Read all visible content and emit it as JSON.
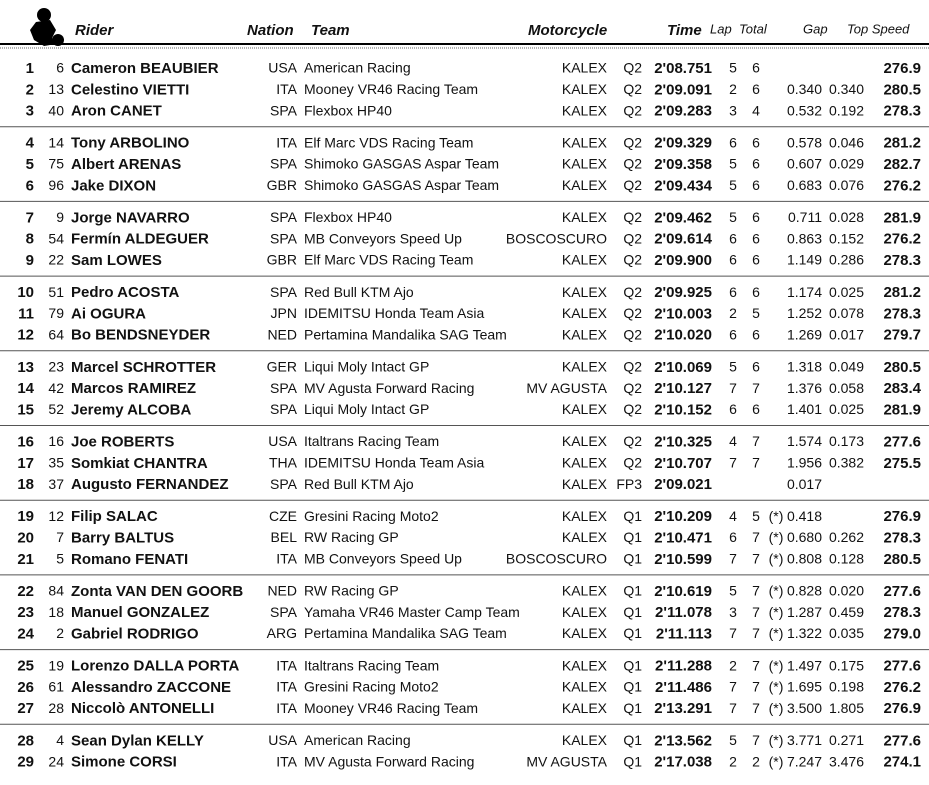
{
  "header": {
    "rider": "Rider",
    "nation": "Nation",
    "team": "Team",
    "motorcycle": "Motorcycle",
    "time": "Time",
    "lap": "Lap",
    "total": "Total",
    "gap": "Gap",
    "top_speed": "Top Speed"
  },
  "rows": [
    {
      "pos": "1",
      "num": "6",
      "rider": "Cameron BEAUBIER",
      "nation": "USA",
      "team": "American Racing",
      "moto": "KALEX",
      "session": "Q2",
      "time": "2'08.751",
      "lap": "5",
      "total": "6",
      "speed": "276.9"
    },
    {
      "pos": "2",
      "num": "13",
      "rider": "Celestino VIETTI",
      "nation": "ITA",
      "team": "Mooney VR46 Racing Team",
      "moto": "KALEX",
      "session": "Q2",
      "time": "2'09.091",
      "lap": "2",
      "total": "6",
      "gap": "0.340",
      "diff": "0.340",
      "speed": "280.5"
    },
    {
      "pos": "3",
      "num": "40",
      "rider": "Aron CANET",
      "nation": "SPA",
      "team": "Flexbox HP40",
      "moto": "KALEX",
      "session": "Q2",
      "time": "2'09.283",
      "lap": "3",
      "total": "4",
      "gap": "0.532",
      "diff": "0.192",
      "speed": "278.3"
    },
    {
      "pos": "4",
      "num": "14",
      "rider": "Tony ARBOLINO",
      "nation": "ITA",
      "team": "Elf Marc VDS Racing Team",
      "moto": "KALEX",
      "session": "Q2",
      "time": "2'09.329",
      "lap": "6",
      "total": "6",
      "gap": "0.578",
      "diff": "0.046",
      "speed": "281.2"
    },
    {
      "pos": "5",
      "num": "75",
      "rider": "Albert ARENAS",
      "nation": "SPA",
      "team": "Shimoko GASGAS Aspar Team",
      "moto": "KALEX",
      "session": "Q2",
      "time": "2'09.358",
      "lap": "5",
      "total": "6",
      "gap": "0.607",
      "diff": "0.029",
      "speed": "282.7"
    },
    {
      "pos": "6",
      "num": "96",
      "rider": "Jake DIXON",
      "nation": "GBR",
      "team": "Shimoko GASGAS Aspar Team",
      "moto": "KALEX",
      "session": "Q2",
      "time": "2'09.434",
      "lap": "5",
      "total": "6",
      "gap": "0.683",
      "diff": "0.076",
      "speed": "276.2"
    },
    {
      "pos": "7",
      "num": "9",
      "rider": "Jorge NAVARRO",
      "nation": "SPA",
      "team": "Flexbox HP40",
      "moto": "KALEX",
      "session": "Q2",
      "time": "2'09.462",
      "lap": "5",
      "total": "6",
      "gap": "0.711",
      "diff": "0.028",
      "speed": "281.9"
    },
    {
      "pos": "8",
      "num": "54",
      "rider": "Fermín ALDEGUER",
      "nation": "SPA",
      "team": "MB Conveyors Speed Up",
      "moto": "BOSCOSCURO",
      "session": "Q2",
      "time": "2'09.614",
      "lap": "6",
      "total": "6",
      "gap": "0.863",
      "diff": "0.152",
      "speed": "276.2"
    },
    {
      "pos": "9",
      "num": "22",
      "rider": "Sam LOWES",
      "nation": "GBR",
      "team": "Elf Marc VDS Racing Team",
      "moto": "KALEX",
      "session": "Q2",
      "time": "2'09.900",
      "lap": "6",
      "total": "6",
      "gap": "1.149",
      "diff": "0.286",
      "speed": "278.3"
    },
    {
      "pos": "10",
      "num": "51",
      "rider": "Pedro ACOSTA",
      "nation": "SPA",
      "team": "Red Bull KTM Ajo",
      "moto": "KALEX",
      "session": "Q2",
      "time": "2'09.925",
      "lap": "6",
      "total": "6",
      "gap": "1.174",
      "diff": "0.025",
      "speed": "281.2"
    },
    {
      "pos": "11",
      "num": "79",
      "rider": "Ai OGURA",
      "nation": "JPN",
      "team": "IDEMITSU Honda Team Asia",
      "moto": "KALEX",
      "session": "Q2",
      "time": "2'10.003",
      "lap": "2",
      "total": "5",
      "gap": "1.252",
      "diff": "0.078",
      "speed": "278.3"
    },
    {
      "pos": "12",
      "num": "64",
      "rider": "Bo BENDSNEYDER",
      "nation": "NED",
      "team": "Pertamina Mandalika SAG Team",
      "moto": "KALEX",
      "session": "Q2",
      "time": "2'10.020",
      "lap": "6",
      "total": "6",
      "gap": "1.269",
      "diff": "0.017",
      "speed": "279.7"
    },
    {
      "pos": "13",
      "num": "23",
      "rider": "Marcel SCHROTTER",
      "nation": "GER",
      "team": "Liqui Moly Intact GP",
      "moto": "KALEX",
      "session": "Q2",
      "time": "2'10.069",
      "lap": "5",
      "total": "6",
      "gap": "1.318",
      "diff": "0.049",
      "speed": "280.5"
    },
    {
      "pos": "14",
      "num": "42",
      "rider": "Marcos RAMIREZ",
      "nation": "SPA",
      "team": "MV Agusta Forward Racing",
      "moto": "MV AGUSTA",
      "session": "Q2",
      "time": "2'10.127",
      "lap": "7",
      "total": "7",
      "gap": "1.376",
      "diff": "0.058",
      "speed": "283.4"
    },
    {
      "pos": "15",
      "num": "52",
      "rider": "Jeremy ALCOBA",
      "nation": "SPA",
      "team": "Liqui Moly Intact GP",
      "moto": "KALEX",
      "session": "Q2",
      "time": "2'10.152",
      "lap": "6",
      "total": "6",
      "gap": "1.401",
      "diff": "0.025",
      "speed": "281.9"
    },
    {
      "pos": "16",
      "num": "16",
      "rider": "Joe ROBERTS",
      "nation": "USA",
      "team": "Italtrans Racing Team",
      "moto": "KALEX",
      "session": "Q2",
      "time": "2'10.325",
      "lap": "4",
      "total": "7",
      "gap": "1.574",
      "diff": "0.173",
      "speed": "277.6"
    },
    {
      "pos": "17",
      "num": "35",
      "rider": "Somkiat CHANTRA",
      "nation": "THA",
      "team": "IDEMITSU Honda Team Asia",
      "moto": "KALEX",
      "session": "Q2",
      "time": "2'10.707",
      "lap": "7",
      "total": "7",
      "gap": "1.956",
      "diff": "0.382",
      "speed": "275.5"
    },
    {
      "pos": "18",
      "num": "37",
      "rider": "Augusto FERNANDEZ",
      "nation": "SPA",
      "team": "Red Bull KTM Ajo",
      "moto": "KALEX",
      "session": "FP3",
      "time": "2'09.021",
      "gap": "0.017"
    },
    {
      "pos": "19",
      "num": "12",
      "rider": "Filip SALAC",
      "nation": "CZE",
      "team": "Gresini Racing Moto2",
      "moto": "KALEX",
      "session": "Q1",
      "time": "2'10.209",
      "lap": "4",
      "total": "5",
      "flag": "(*)",
      "gap": "0.418",
      "speed": "276.9"
    },
    {
      "pos": "20",
      "num": "7",
      "rider": "Barry BALTUS",
      "nation": "BEL",
      "team": "RW Racing GP",
      "moto": "KALEX",
      "session": "Q1",
      "time": "2'10.471",
      "lap": "6",
      "total": "7",
      "flag": "(*)",
      "gap": "0.680",
      "diff": "0.262",
      "speed": "278.3"
    },
    {
      "pos": "21",
      "num": "5",
      "rider": "Romano FENATI",
      "nation": "ITA",
      "team": "MB Conveyors Speed Up",
      "moto": "BOSCOSCURO",
      "session": "Q1",
      "time": "2'10.599",
      "lap": "7",
      "total": "7",
      "flag": "(*)",
      "gap": "0.808",
      "diff": "0.128",
      "speed": "280.5"
    },
    {
      "pos": "22",
      "num": "84",
      "rider": "Zonta VAN DEN GOORB",
      "nation": "NED",
      "team": "RW Racing GP",
      "moto": "KALEX",
      "session": "Q1",
      "time": "2'10.619",
      "lap": "5",
      "total": "7",
      "flag": "(*)",
      "gap": "0.828",
      "diff": "0.020",
      "speed": "277.6"
    },
    {
      "pos": "23",
      "num": "18",
      "rider": "Manuel GONZALEZ",
      "nation": "SPA",
      "team": "Yamaha VR46 Master Camp Team",
      "moto": "KALEX",
      "session": "Q1",
      "time": "2'11.078",
      "lap": "3",
      "total": "7",
      "flag": "(*)",
      "gap": "1.287",
      "diff": "0.459",
      "speed": "278.3"
    },
    {
      "pos": "24",
      "num": "2",
      "rider": "Gabriel RODRIGO",
      "nation": "ARG",
      "team": "Pertamina Mandalika SAG Team",
      "moto": "KALEX",
      "session": "Q1",
      "time": "2'11.113",
      "lap": "7",
      "total": "7",
      "flag": "(*)",
      "gap": "1.322",
      "diff": "0.035",
      "speed": "279.0"
    },
    {
      "pos": "25",
      "num": "19",
      "rider": "Lorenzo DALLA PORTA",
      "nation": "ITA",
      "team": "Italtrans Racing Team",
      "moto": "KALEX",
      "session": "Q1",
      "time": "2'11.288",
      "lap": "2",
      "total": "7",
      "flag": "(*)",
      "gap": "1.497",
      "diff": "0.175",
      "speed": "277.6"
    },
    {
      "pos": "26",
      "num": "61",
      "rider": "Alessandro ZACCONE",
      "nation": "ITA",
      "team": "Gresini Racing Moto2",
      "moto": "KALEX",
      "session": "Q1",
      "time": "2'11.486",
      "lap": "7",
      "total": "7",
      "flag": "(*)",
      "gap": "1.695",
      "diff": "0.198",
      "speed": "276.2"
    },
    {
      "pos": "27",
      "num": "28",
      "rider": "Niccolò ANTONELLI",
      "nation": "ITA",
      "team": "Mooney VR46 Racing Team",
      "moto": "KALEX",
      "session": "Q1",
      "time": "2'13.291",
      "lap": "7",
      "total": "7",
      "flag": "(*)",
      "gap": "3.500",
      "diff": "1.805",
      "speed": "276.9"
    },
    {
      "pos": "28",
      "num": "4",
      "rider": "Sean Dylan KELLY",
      "nation": "USA",
      "team": "American Racing",
      "moto": "KALEX",
      "session": "Q1",
      "time": "2'13.562",
      "lap": "5",
      "total": "7",
      "flag": "(*)",
      "gap": "3.771",
      "diff": "0.271",
      "speed": "277.6"
    },
    {
      "pos": "29",
      "num": "24",
      "rider": "Simone CORSI",
      "nation": "ITA",
      "team": "MV Agusta Forward Racing",
      "moto": "MV AGUSTA",
      "session": "Q1",
      "time": "2'17.038",
      "lap": "2",
      "total": "2",
      "flag": "(*)",
      "gap": "7.247",
      "diff": "3.476",
      "speed": "274.1"
    }
  ]
}
